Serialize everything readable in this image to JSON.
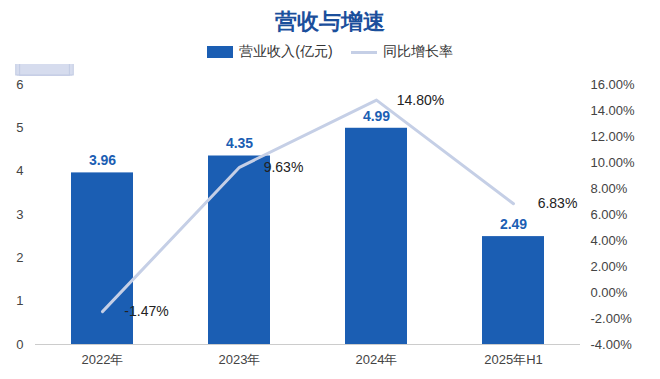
{
  "chart_data": {
    "type": "bar",
    "title": "营收与增速",
    "categories": [
      "2022年",
      "2023年",
      "2024年",
      "2025年H1"
    ],
    "series": [
      {
        "name": "营业收入(亿元)",
        "type": "bar",
        "color": "#1b5eb3",
        "values": [
          3.96,
          4.35,
          4.99,
          2.49
        ]
      },
      {
        "name": "同比增长率",
        "type": "line",
        "axis": "y2",
        "color": "#c5cfe6",
        "values": [
          -1.47,
          9.63,
          14.8,
          6.83
        ],
        "value_labels": [
          "-1.47%",
          "9.63%",
          "14.80%",
          "6.83%"
        ]
      }
    ],
    "ylim": [
      0,
      6
    ],
    "yticks": [
      0,
      1,
      2,
      3,
      4,
      5,
      6
    ],
    "y2lim": [
      -4,
      16
    ],
    "y2ticks": [
      {
        "value": -4,
        "label": "-4.00%"
      },
      {
        "value": -2,
        "label": "-2.00%"
      },
      {
        "value": 0,
        "label": "0.00%"
      },
      {
        "value": 2,
        "label": "2.00%"
      },
      {
        "value": 4,
        "label": "4.00%"
      },
      {
        "value": 6,
        "label": "6.00%"
      },
      {
        "value": 8,
        "label": "8.00%"
      },
      {
        "value": 10,
        "label": "10.00%"
      },
      {
        "value": 12,
        "label": "12.00%"
      },
      {
        "value": 14,
        "label": "14.00%"
      },
      {
        "value": 16,
        "label": "16.00%"
      }
    ],
    "data_labels": true,
    "grid": false,
    "legend": "top"
  }
}
